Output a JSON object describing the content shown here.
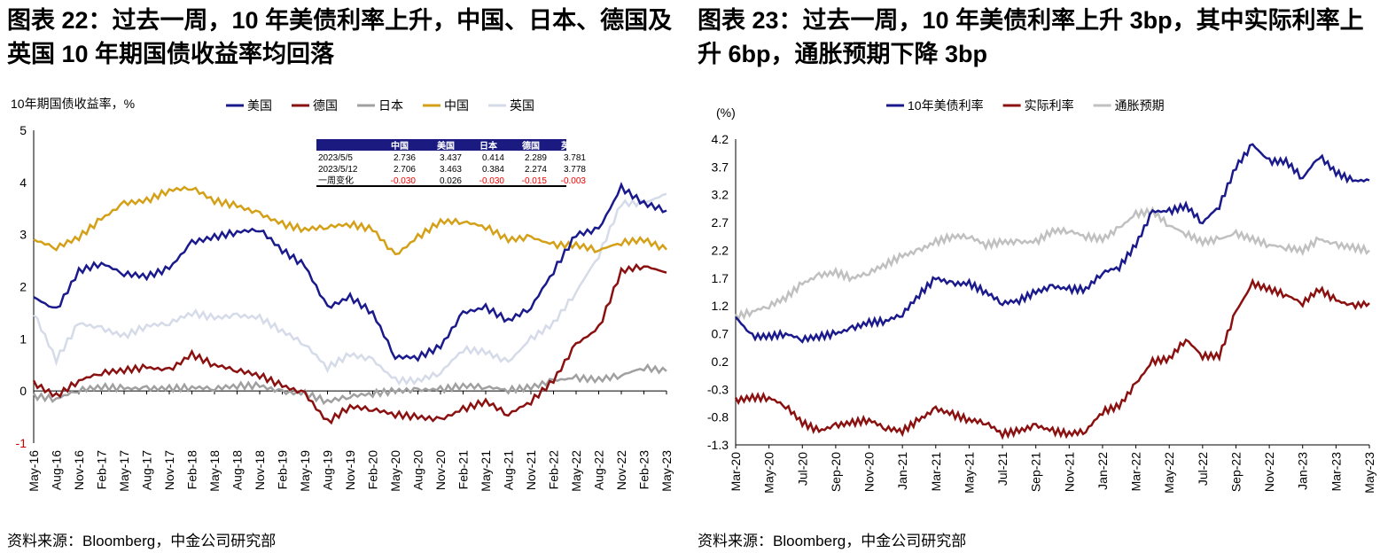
{
  "chart_data": [
    {
      "type": "line",
      "title": "图表 22：过去一周，10 年美债利率上升，中国、日本、德国及英国 10 年期国债收益率均回落",
      "ylabel": "10年期国债收益率，%",
      "ylim": [
        -1,
        5
      ],
      "yticks": [
        -1,
        0,
        1,
        2,
        3,
        4,
        5
      ],
      "xticks": [
        "May-16",
        "Aug-16",
        "Nov-16",
        "Feb-17",
        "May-17",
        "Aug-17",
        "Nov-17",
        "Feb-18",
        "May-18",
        "Aug-18",
        "Nov-18",
        "Feb-19",
        "May-19",
        "Aug-19",
        "Nov-19",
        "Feb-20",
        "May-20",
        "Aug-20",
        "Nov-20",
        "Feb-21",
        "May-21",
        "Aug-21",
        "Nov-21",
        "Feb-22",
        "May-22",
        "Aug-22",
        "Nov-22",
        "Feb-23",
        "May-23"
      ],
      "source": "资料来源：Bloomberg，中金公司研究部",
      "legend_position": "top",
      "series": [
        {
          "name": "美国",
          "color": "#1a1a8c",
          "values": [
            1.8,
            1.55,
            2.3,
            2.45,
            2.25,
            2.2,
            2.35,
            2.85,
            2.95,
            3.05,
            3.1,
            2.7,
            2.4,
            1.6,
            1.8,
            1.5,
            0.65,
            0.65,
            0.85,
            1.5,
            1.6,
            1.35,
            1.6,
            2.3,
            3.0,
            3.1,
            3.9,
            3.6,
            3.46
          ]
        },
        {
          "name": "德国",
          "color": "#8b1010",
          "values": [
            0.15,
            -0.1,
            0.2,
            0.35,
            0.4,
            0.45,
            0.4,
            0.7,
            0.5,
            0.4,
            0.3,
            0.1,
            -0.05,
            -0.6,
            -0.3,
            -0.35,
            -0.45,
            -0.5,
            -0.55,
            -0.35,
            -0.2,
            -0.45,
            -0.2,
            0.2,
            0.9,
            1.2,
            2.3,
            2.4,
            2.27
          ]
        },
        {
          "name": "日本",
          "color": "#a0a0a0",
          "values": [
            -0.1,
            -0.15,
            0.02,
            0.08,
            0.05,
            0.05,
            0.05,
            0.07,
            0.05,
            0.1,
            0.1,
            -0.02,
            -0.05,
            -0.2,
            -0.1,
            -0.05,
            0.0,
            0.02,
            0.03,
            0.1,
            0.08,
            0.02,
            0.07,
            0.2,
            0.25,
            0.22,
            0.3,
            0.45,
            0.38
          ]
        },
        {
          "name": "中国",
          "color": "#d4a017",
          "values": [
            2.9,
            2.75,
            2.95,
            3.3,
            3.6,
            3.65,
            3.85,
            3.9,
            3.65,
            3.55,
            3.4,
            3.2,
            3.1,
            3.15,
            3.2,
            3.1,
            2.6,
            2.95,
            3.25,
            3.25,
            3.15,
            2.9,
            2.95,
            2.8,
            2.8,
            2.7,
            2.85,
            2.9,
            2.71
          ]
        },
        {
          "name": "英国",
          "color": "#d5dbe8",
          "values": [
            1.5,
            0.6,
            1.3,
            1.2,
            1.05,
            1.25,
            1.3,
            1.5,
            1.4,
            1.45,
            1.4,
            1.15,
            0.9,
            0.45,
            0.7,
            0.6,
            0.2,
            0.2,
            0.35,
            0.8,
            0.75,
            0.55,
            1.0,
            1.3,
            1.9,
            2.6,
            3.6,
            3.6,
            3.78
          ]
        }
      ],
      "table": {
        "headers": [
          "",
          "中国",
          "美国",
          "日本",
          "德国",
          "英国"
        ],
        "rows": [
          [
            "2023/5/5",
            "2.736",
            "3.437",
            "0.414",
            "2.289",
            "3.781"
          ],
          [
            "2023/5/12",
            "2.706",
            "3.463",
            "0.384",
            "2.274",
            "3.778"
          ],
          [
            "一周变化",
            "-0.030",
            "0.026",
            "-0.030",
            "-0.015",
            "-0.003"
          ]
        ]
      }
    },
    {
      "type": "line",
      "title": "图表 23：过去一周，10 年美债利率上升 3bp，其中实际利率上升 6bp，通胀预期下降 3bp",
      "ylabel": "(%)",
      "ylim": [
        -1.3,
        4.2
      ],
      "yticks": [
        "-1.3",
        "-0.8",
        "-0.3",
        "0.2",
        "0.7",
        "1.2",
        "1.7",
        "2.2",
        "2.7",
        "3.2",
        "3.7",
        "4.2"
      ],
      "xticks": [
        "Mar-20",
        "May-20",
        "Jul-20",
        "Sep-20",
        "Nov-20",
        "Jan-21",
        "Mar-21",
        "May-21",
        "Jul-21",
        "Sep-21",
        "Nov-21",
        "Jan-22",
        "Mar-22",
        "May-22",
        "Jul-22",
        "Sep-22",
        "Nov-22",
        "Jan-23",
        "Mar-23",
        "May-23"
      ],
      "source": "资料来源：Bloomberg，中金公司研究部",
      "legend_position": "top",
      "series": [
        {
          "name": "10年美债利率",
          "color": "#1a1a8c",
          "values": [
            1.0,
            0.65,
            0.65,
            0.7,
            0.6,
            0.65,
            0.7,
            0.8,
            0.9,
            0.93,
            1.05,
            1.4,
            1.7,
            1.6,
            1.6,
            1.45,
            1.25,
            1.3,
            1.45,
            1.55,
            1.5,
            1.5,
            1.8,
            1.9,
            2.3,
            2.9,
            2.9,
            3.0,
            2.7,
            3.0,
            3.7,
            4.1,
            3.8,
            3.8,
            3.5,
            3.9,
            3.6,
            3.45,
            3.46
          ]
        },
        {
          "name": "实际利率",
          "color": "#8b1010",
          "values": [
            -0.5,
            -0.45,
            -0.45,
            -0.6,
            -0.9,
            -1.05,
            -0.95,
            -0.9,
            -0.85,
            -1.0,
            -1.05,
            -0.85,
            -0.65,
            -0.75,
            -0.85,
            -0.9,
            -1.1,
            -1.05,
            -0.95,
            -1.05,
            -1.1,
            -1.05,
            -0.7,
            -0.6,
            -0.2,
            0.2,
            0.25,
            0.6,
            0.3,
            0.3,
            1.1,
            1.6,
            1.5,
            1.4,
            1.25,
            1.5,
            1.3,
            1.2,
            1.25
          ]
        },
        {
          "name": "通胀预期",
          "color": "#c0c0c0",
          "values": [
            1.0,
            1.1,
            1.2,
            1.35,
            1.6,
            1.75,
            1.8,
            1.7,
            1.8,
            1.95,
            2.1,
            2.2,
            2.35,
            2.45,
            2.45,
            2.3,
            2.35,
            2.35,
            2.35,
            2.55,
            2.55,
            2.45,
            2.4,
            2.6,
            2.85,
            2.9,
            2.65,
            2.5,
            2.35,
            2.4,
            2.5,
            2.4,
            2.3,
            2.25,
            2.2,
            2.4,
            2.3,
            2.25,
            2.2
          ]
        }
      ]
    }
  ]
}
